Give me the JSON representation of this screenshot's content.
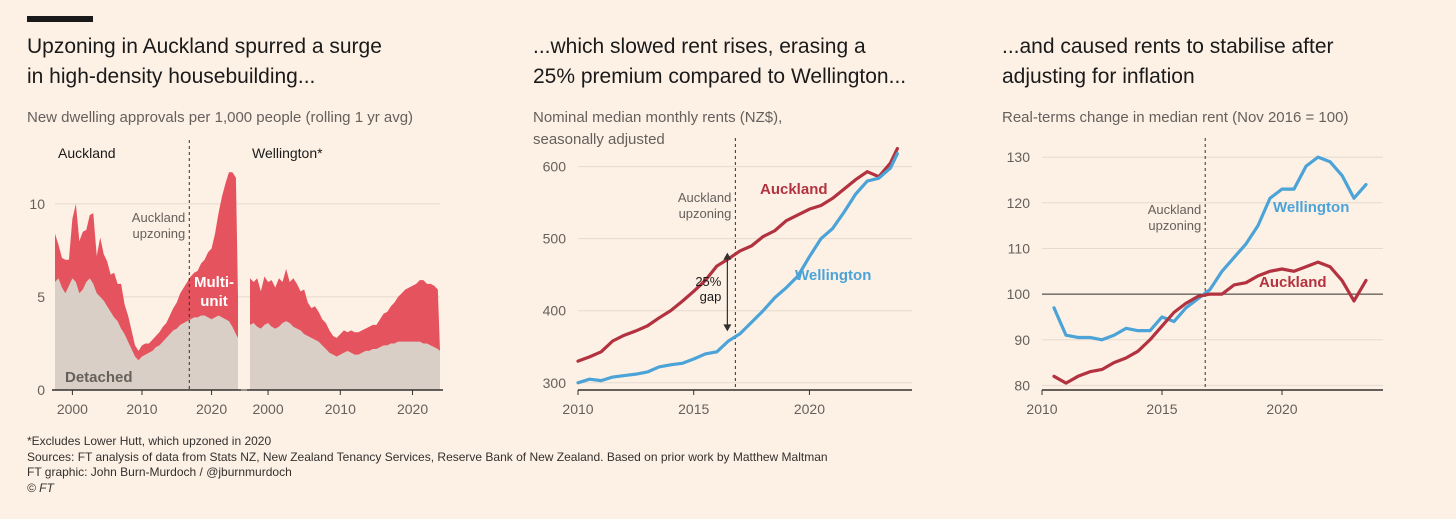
{
  "footnotes": {
    "note": "*Excludes Lower Hutt, which upzoned in 2020",
    "sources": "Sources: FT analysis of data from Stats NZ, New Zealand Tenancy Services, Reserve Bank of New Zealand. Based on prior work by Matthew Maltman",
    "graphic": "FT graphic: John Burn-Murdoch / @jburnmurdoch",
    "copyright": "© FT"
  },
  "colors": {
    "background": "#fdf1e6",
    "auckland": "#b3323f",
    "wellington": "#4ba3d7",
    "multi_unit": "#e5535f",
    "detached": "#d9cfc6"
  },
  "chart_data": [
    {
      "type": "area",
      "title_line1": "Upzoning in Auckland spurred a surge",
      "title_line2": "in high-density housebuilding...",
      "subtitle": "New dwelling approvals per 1,000 people (rolling 1 yr avg)",
      "ylim": [
        0,
        13
      ],
      "yticks": [
        "0",
        "5",
        "10"
      ],
      "stacked": true,
      "annotations": {
        "event": "Auckland upzoning",
        "event_year": 2016.8,
        "multi_unit_label": "Multi-\nunit",
        "detached_label": "Detached"
      },
      "panels": [
        {
          "name": "Auckland",
          "xlim": [
            1997.5,
            2023.8
          ],
          "xticks": [
            "2000",
            "2010",
            "2020"
          ],
          "x": [
            1997.5,
            1998,
            1998.5,
            1999,
            1999.5,
            2000,
            2000.5,
            2001,
            2001.5,
            2002,
            2002.5,
            2003,
            2003.5,
            2004,
            2004.5,
            2005,
            2005.5,
            2006,
            2006.5,
            2007,
            2007.5,
            2008,
            2008.5,
            2009,
            2009.5,
            2010,
            2010.5,
            2011,
            2011.5,
            2012,
            2012.5,
            2013,
            2013.5,
            2014,
            2014.5,
            2015,
            2015.5,
            2016,
            2016.5,
            2017,
            2017.5,
            2018,
            2018.5,
            2019,
            2019.5,
            2020,
            2020.5,
            2021,
            2021.5,
            2022,
            2022.5,
            2023,
            2023.5,
            2023.8
          ],
          "series": [
            {
              "name": "Detached",
              "values": [
                5.8,
                6.0,
                5.5,
                5.2,
                5.6,
                6.0,
                5.8,
                5.2,
                5.4,
                5.8,
                6.0,
                5.7,
                5.2,
                5.0,
                4.8,
                4.5,
                4.2,
                3.9,
                3.7,
                3.3,
                3.0,
                2.6,
                2.2,
                1.8,
                1.6,
                1.8,
                1.9,
                2.0,
                2.1,
                2.3,
                2.4,
                2.6,
                2.8,
                3.0,
                3.2,
                3.3,
                3.5,
                3.6,
                3.7,
                3.8,
                3.9,
                3.9,
                4.0,
                4.0,
                3.9,
                3.8,
                3.9,
                4.0,
                3.9,
                3.8,
                3.7,
                3.4,
                3.0,
                2.8
              ]
            },
            {
              "name": "Multi-unit",
              "values": [
                2.6,
                1.8,
                1.6,
                1.8,
                1.4,
                3.2,
                4.2,
                2.8,
                3.1,
                2.8,
                3.4,
                3.8,
                2.0,
                3.2,
                2.5,
                2.4,
                2.0,
                2.4,
                2.0,
                2.4,
                1.6,
                1.4,
                1.0,
                0.6,
                0.5,
                0.6,
                0.6,
                0.5,
                0.6,
                0.6,
                0.7,
                0.8,
                0.8,
                1.0,
                1.2,
                1.4,
                1.7,
                1.9,
                2.1,
                2.3,
                2.4,
                2.5,
                2.8,
                3.0,
                3.5,
                3.8,
                4.5,
                5.5,
                6.5,
                7.3,
                8.0,
                8.3,
                8.4,
                2.2
              ]
            }
          ]
        },
        {
          "name": "Wellington*",
          "xlim": [
            1997.5,
            2023.8
          ],
          "xticks": [
            "2000",
            "2010",
            "2020"
          ],
          "x": [
            1997.5,
            1998,
            1998.5,
            1999,
            1999.5,
            2000,
            2000.5,
            2001,
            2001.5,
            2002,
            2002.5,
            2003,
            2003.5,
            2004,
            2004.5,
            2005,
            2005.5,
            2006,
            2006.5,
            2007,
            2007.5,
            2008,
            2008.5,
            2009,
            2009.5,
            2010,
            2010.5,
            2011,
            2011.5,
            2012,
            2012.5,
            2013,
            2013.5,
            2014,
            2014.5,
            2015,
            2015.5,
            2016,
            2016.5,
            2017,
            2017.5,
            2018,
            2018.5,
            2019,
            2019.5,
            2020,
            2020.5,
            2021,
            2021.5,
            2022,
            2022.5,
            2023,
            2023.5,
            2023.8
          ],
          "series": [
            {
              "name": "Detached",
              "values": [
                3.5,
                3.6,
                3.4,
                3.3,
                3.5,
                3.6,
                3.4,
                3.3,
                3.4,
                3.6,
                3.7,
                3.6,
                3.4,
                3.3,
                3.2,
                3.0,
                2.9,
                2.8,
                2.7,
                2.6,
                2.4,
                2.2,
                2.0,
                1.9,
                1.8,
                1.9,
                2.0,
                2.1,
                2.0,
                1.9,
                1.9,
                2.0,
                2.1,
                2.1,
                2.2,
                2.2,
                2.3,
                2.4,
                2.4,
                2.5,
                2.5,
                2.6,
                2.6,
                2.6,
                2.6,
                2.6,
                2.6,
                2.6,
                2.5,
                2.5,
                2.4,
                2.3,
                2.2,
                2.1
              ]
            },
            {
              "name": "Multi-unit",
              "values": [
                2.5,
                2.2,
                2.6,
                2.0,
                2.6,
                2.2,
                2.5,
                2.2,
                2.6,
                2.2,
                2.8,
                2.2,
                2.6,
                2.4,
                2.1,
                2.4,
                1.8,
                1.6,
                1.8,
                1.6,
                1.4,
                1.4,
                1.2,
                1.0,
                1.0,
                1.1,
                1.2,
                1.0,
                1.2,
                1.2,
                1.2,
                1.2,
                1.2,
                1.3,
                1.3,
                1.3,
                1.5,
                1.7,
                1.8,
                2.0,
                2.2,
                2.4,
                2.6,
                2.8,
                2.9,
                3.0,
                3.1,
                3.3,
                3.4,
                3.2,
                3.3,
                3.3,
                3.2,
                0.0
              ]
            }
          ]
        }
      ]
    },
    {
      "type": "line",
      "title_line1": "...which slowed rent rises, erasing a",
      "title_line2": "25% premium compared to Wellington...",
      "subtitle_line1": "Nominal median monthly rents (NZ$),",
      "subtitle_line2": "seasonally adjusted",
      "xlim": [
        2010,
        2024
      ],
      "xticks": [
        2010,
        2015,
        2020
      ],
      "ylim": [
        290,
        630
      ],
      "yticks": [
        300,
        400,
        500,
        600
      ],
      "annotations": {
        "event": "Auckland upzoning",
        "event_year": 2016.8,
        "gap_label": "25%\ngap",
        "gap_from": 370,
        "gap_to": 482
      },
      "series": [
        {
          "name": "Auckland",
          "x": [
            2010,
            2010.5,
            2011,
            2011.5,
            2012,
            2012.5,
            2013,
            2013.5,
            2014,
            2014.5,
            2015,
            2015.5,
            2016,
            2016.5,
            2017,
            2017.5,
            2018,
            2018.5,
            2019,
            2019.5,
            2020,
            2020.5,
            2021,
            2021.5,
            2022,
            2022.5,
            2023,
            2023.5,
            2023.8
          ],
          "values": [
            330,
            336,
            343,
            358,
            366,
            372,
            379,
            390,
            400,
            413,
            427,
            442,
            462,
            472,
            483,
            490,
            503,
            511,
            525,
            533,
            541,
            546,
            556,
            569,
            582,
            593,
            586,
            605,
            625
          ]
        },
        {
          "name": "Wellington",
          "x": [
            2010,
            2010.5,
            2011,
            2011.5,
            2012,
            2012.5,
            2013,
            2013.5,
            2014,
            2014.5,
            2015,
            2015.5,
            2016,
            2016.5,
            2017,
            2017.5,
            2018,
            2018.5,
            2019,
            2019.5,
            2020,
            2020.5,
            2021,
            2021.5,
            2022,
            2022.5,
            2023,
            2023.5,
            2023.8
          ],
          "values": [
            300,
            305,
            303,
            308,
            310,
            312,
            315,
            322,
            325,
            327,
            333,
            340,
            343,
            358,
            368,
            384,
            400,
            418,
            432,
            448,
            475,
            500,
            514,
            537,
            562,
            580,
            584,
            598,
            618
          ]
        }
      ]
    },
    {
      "type": "line",
      "title_line1": "...and caused rents to stabilise after",
      "title_line2": "adjusting for inflation",
      "subtitle": "Real-terms change in median rent (Nov 2016 = 100)",
      "xlim": [
        2010,
        2024
      ],
      "xticks": [
        2010,
        2015,
        2020
      ],
      "ylim": [
        79,
        132
      ],
      "yticks": [
        80,
        90,
        100,
        110,
        120,
        130
      ],
      "reference_line": 100,
      "annotations": {
        "event": "Auckland upzoning",
        "event_year": 2016.8
      },
      "series": [
        {
          "name": "Wellington",
          "x": [
            2010.5,
            2011,
            2011.5,
            2012,
            2012.5,
            2013,
            2013.5,
            2014,
            2014.5,
            2015,
            2015.5,
            2016,
            2016.5,
            2017,
            2017.5,
            2018,
            2018.5,
            2019,
            2019.5,
            2020,
            2020.5,
            2021,
            2021.5,
            2022,
            2022.5,
            2023,
            2023.5
          ],
          "values": [
            97,
            91,
            90.5,
            90.5,
            90,
            91,
            92.5,
            92,
            92,
            95,
            94,
            97,
            99,
            101,
            105,
            108,
            111,
            115,
            121,
            123,
            123,
            128,
            130,
            129,
            126,
            121,
            124
          ]
        },
        {
          "name": "Auckland",
          "x": [
            2010.5,
            2011,
            2011.5,
            2012,
            2012.5,
            2013,
            2013.5,
            2014,
            2014.5,
            2015,
            2015.5,
            2016,
            2016.5,
            2017,
            2017.5,
            2018,
            2018.5,
            2019,
            2019.5,
            2020,
            2020.5,
            2021,
            2021.5,
            2022,
            2022.5,
            2023,
            2023.5
          ],
          "values": [
            82,
            80.5,
            82,
            83,
            83.5,
            85,
            86,
            87.5,
            90,
            93,
            96,
            98,
            99.5,
            100,
            100,
            102,
            102.5,
            104,
            105,
            105.5,
            105,
            106,
            107,
            106,
            103,
            98.5,
            103
          ]
        }
      ]
    }
  ]
}
